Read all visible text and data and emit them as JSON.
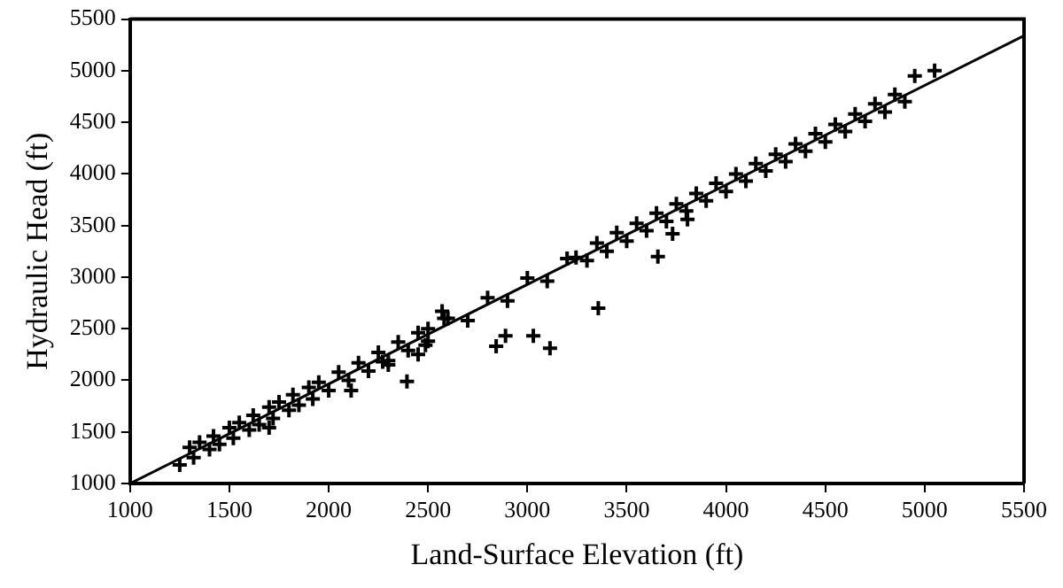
{
  "chart_data": {
    "type": "scatter",
    "xlabel": "Land-Surface Elevation (ft)",
    "ylabel": "Hydraulic Head (ft)",
    "xlim": [
      1000,
      5500
    ],
    "ylim": [
      1000,
      5500
    ],
    "xticks": [
      1000,
      1500,
      2000,
      2500,
      3000,
      3500,
      4000,
      4500,
      5000,
      5500
    ],
    "yticks": [
      1000,
      1500,
      2000,
      2500,
      3000,
      3500,
      4000,
      4500,
      5000,
      5500
    ],
    "grid": false,
    "legend": false,
    "marker": "cross",
    "series": [
      {
        "color": "#000000",
        "x": [
          1250,
          1300,
          1320,
          1350,
          1400,
          1420,
          1450,
          1500,
          1520,
          1550,
          1600,
          1620,
          1650,
          1700,
          1720,
          1750,
          1800,
          1820,
          1850,
          1900,
          1920,
          1950,
          2000,
          2050,
          2100,
          2150,
          2200,
          2250,
          2300,
          2350,
          2400,
          2450,
          2500,
          2300,
          2450,
          2500,
          1700,
          2113,
          2394,
          2272,
          2487,
          2581,
          2843,
          2890,
          3030,
          2571,
          3114,
          3357,
          3245,
          3657,
          3731,
          3806,
          2600,
          2700,
          2800,
          2900,
          3000,
          3100,
          3200,
          3300,
          3350,
          3400,
          3450,
          3500,
          3550,
          3600,
          3650,
          3700,
          3750,
          3800,
          3850,
          3900,
          3950,
          4000,
          4050,
          4100,
          4150,
          4200,
          4250,
          4300,
          4350,
          4400,
          4450,
          4500,
          4550,
          4600,
          4650,
          4700,
          4750,
          4800,
          4850,
          4900,
          4950,
          5050
        ],
        "values": [
          1180,
          1350,
          1250,
          1400,
          1330,
          1460,
          1380,
          1540,
          1440,
          1590,
          1520,
          1660,
          1570,
          1740,
          1630,
          1790,
          1710,
          1860,
          1760,
          1930,
          1820,
          1980,
          1900,
          2080,
          2000,
          2170,
          2090,
          2270,
          2190,
          2370,
          2290,
          2460,
          2380,
          2150,
          2250,
          2500,
          1540,
          1900,
          1990,
          2180,
          2340,
          2600,
          2330,
          2430,
          2430,
          2670,
          2310,
          2700,
          3190,
          3200,
          3420,
          3560,
          2600,
          2580,
          2800,
          2770,
          2990,
          2960,
          3180,
          3160,
          3330,
          3250,
          3430,
          3350,
          3520,
          3450,
          3620,
          3540,
          3710,
          3640,
          3810,
          3740,
          3910,
          3830,
          4000,
          3930,
          4100,
          4030,
          4190,
          4120,
          4290,
          4220,
          4390,
          4310,
          4480,
          4410,
          4580,
          4510,
          4680,
          4600,
          4770,
          4700,
          4950,
          5000
        ]
      },
      {
        "type": "line",
        "color": "#000000",
        "x": [
          1000,
          5500
        ],
        "values": [
          1000,
          5340
        ],
        "marker": "none",
        "line_style": "solid"
      }
    ]
  }
}
